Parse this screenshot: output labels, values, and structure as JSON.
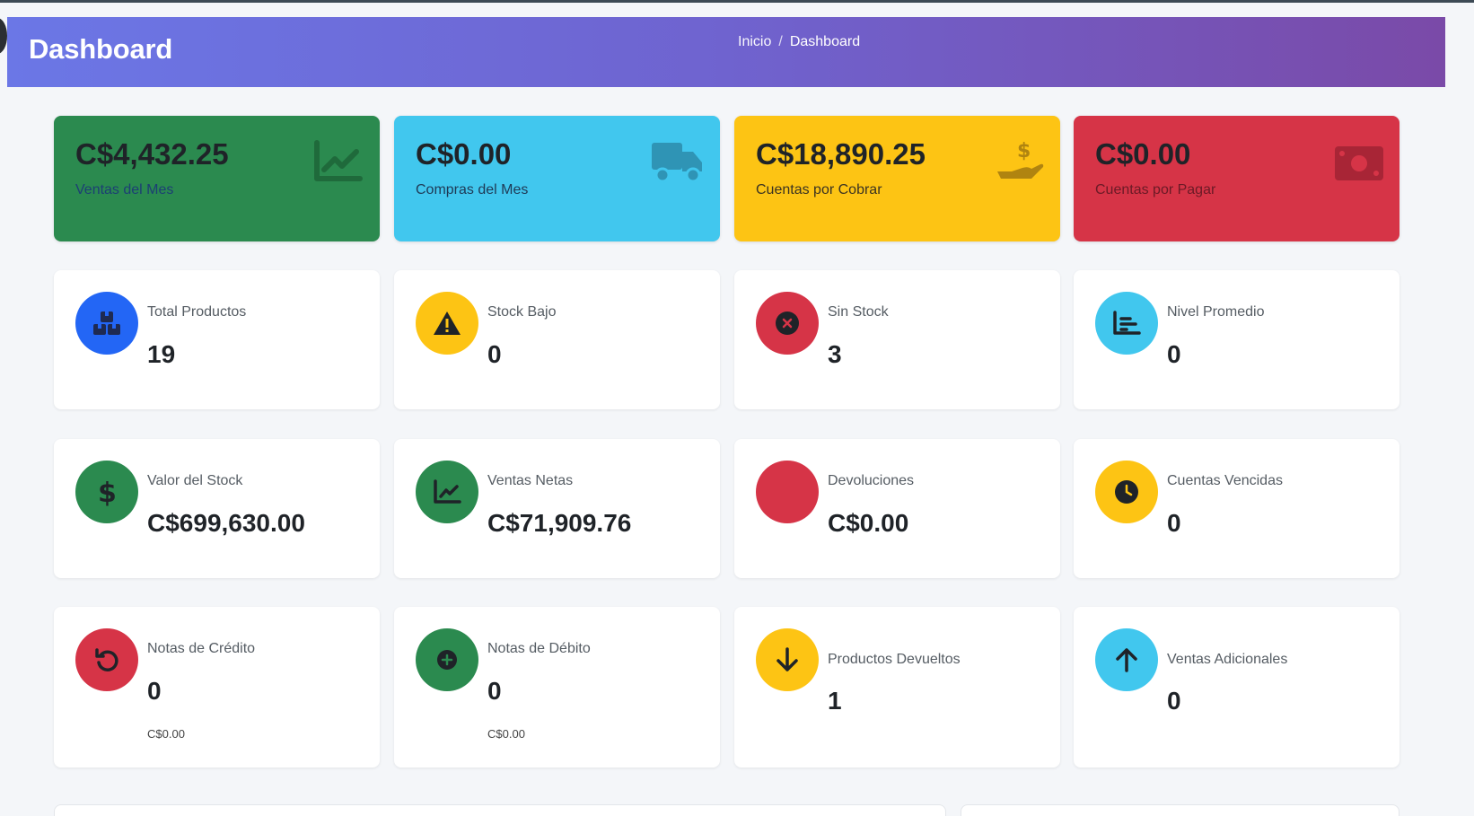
{
  "header": {
    "title": "Dashboard",
    "breadcrumb": {
      "home": "Inicio",
      "separator": "/",
      "current": "Dashboard"
    }
  },
  "kpis": [
    {
      "value": "C$4,432.25",
      "label": "Ventas del Mes",
      "icon": "chart-line-icon",
      "color": "#2b8a4f"
    },
    {
      "value": "C$0.00",
      "label": "Compras del Mes",
      "icon": "truck-icon",
      "color": "#41c7ee"
    },
    {
      "value": "C$18,890.25",
      "label": "Cuentas por Cobrar",
      "icon": "hand-holding-dollar-icon",
      "color": "#fdc414"
    },
    {
      "value": "C$0.00",
      "label": "Cuentas por Pagar",
      "icon": "money-bill-icon",
      "color": "#d63447"
    }
  ],
  "stats_row1": [
    {
      "title": "Total Productos",
      "value": "19",
      "icon": "boxes-icon",
      "color": "#2366f5"
    },
    {
      "title": "Stock Bajo",
      "value": "0",
      "icon": "warning-icon",
      "color": "#fdc414"
    },
    {
      "title": "Sin Stock",
      "value": "3",
      "icon": "times-circle-icon",
      "color": "#d63447"
    },
    {
      "title": "Nivel Promedio",
      "value": "0",
      "icon": "chart-bar-icon",
      "color": "#41c7ee"
    }
  ],
  "stats_row2": [
    {
      "title": "Valor del Stock",
      "value": "C$699,630.00",
      "icon": "dollar-icon",
      "color": "#2b8a4f"
    },
    {
      "title": "Ventas Netas",
      "value": "C$71,909.76",
      "icon": "chart-line-icon",
      "color": "#2b8a4f"
    },
    {
      "title": "Devoluciones",
      "value": "C$0.00",
      "icon": "undo-icon",
      "color": "#d63447"
    },
    {
      "title": "Cuentas Vencidas",
      "value": "0",
      "icon": "clock-icon",
      "color": "#fdc414"
    }
  ],
  "stats_row3": [
    {
      "title": "Notas de Crédito",
      "value": "0",
      "sub": "C$0.00",
      "icon": "rotate-left-icon",
      "color": "#d63447"
    },
    {
      "title": "Notas de Débito",
      "value": "0",
      "sub": "C$0.00",
      "icon": "plus-circle-icon",
      "color": "#2b8a4f"
    },
    {
      "title": "Productos Devueltos",
      "value": "1",
      "icon": "arrow-down-icon",
      "color": "#fdc414"
    },
    {
      "title": "Ventas Adicionales",
      "value": "0",
      "icon": "arrow-up-icon",
      "color": "#41c7ee"
    }
  ]
}
